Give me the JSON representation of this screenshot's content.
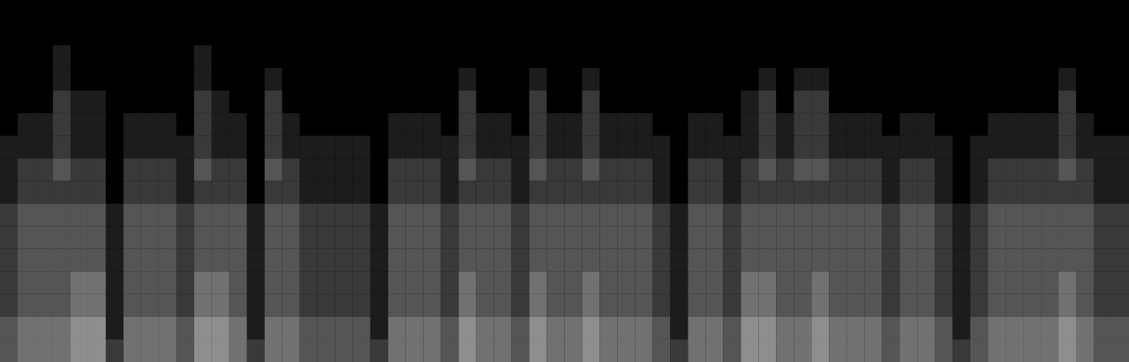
{
  "chart_data": {
    "type": "heatmap",
    "tick_labels": false,
    "zlim": [
      0,
      9
    ],
    "cells": [
      [
        0,
        0,
        0,
        0,
        0,
        0,
        0,
        0,
        0,
        0,
        0,
        0,
        0,
        0,
        0,
        0,
        0,
        0,
        0,
        0,
        0,
        0,
        0,
        0,
        0,
        0,
        0,
        0,
        0,
        0,
        0,
        0,
        0,
        0,
        0,
        0,
        0,
        0,
        0,
        0,
        0,
        0,
        0,
        0,
        0,
        0,
        0,
        0,
        0,
        0,
        0,
        0,
        0,
        0,
        0,
        0,
        0,
        0,
        0,
        0,
        0,
        0,
        0,
        0
      ],
      [
        0,
        0,
        0,
        0,
        0,
        0,
        0,
        0,
        0,
        0,
        0,
        0,
        0,
        0,
        0,
        0,
        0,
        0,
        0,
        0,
        0,
        0,
        0,
        0,
        0,
        0,
        0,
        0,
        0,
        0,
        0,
        0,
        0,
        0,
        0,
        0,
        0,
        0,
        0,
        0,
        0,
        0,
        0,
        0,
        0,
        0,
        0,
        0,
        0,
        0,
        0,
        0,
        0,
        0,
        0,
        0,
        0,
        0,
        0,
        0,
        0,
        0,
        0,
        0
      ],
      [
        0,
        0,
        0,
        1,
        0,
        0,
        0,
        0,
        0,
        0,
        0,
        1,
        0,
        0,
        0,
        0,
        0,
        0,
        0,
        0,
        0,
        0,
        0,
        0,
        0,
        0,
        0,
        0,
        0,
        0,
        0,
        0,
        0,
        0,
        0,
        0,
        0,
        0,
        0,
        0,
        0,
        0,
        0,
        0,
        0,
        0,
        0,
        0,
        0,
        0,
        0,
        0,
        0,
        0,
        0,
        0,
        0,
        0,
        0,
        0,
        0,
        0,
        0,
        0
      ],
      [
        0,
        0,
        0,
        1,
        0,
        0,
        0,
        0,
        0,
        0,
        0,
        1,
        0,
        0,
        0,
        1,
        0,
        0,
        0,
        0,
        0,
        0,
        0,
        0,
        0,
        0,
        1,
        0,
        0,
        0,
        1,
        0,
        0,
        1,
        0,
        0,
        0,
        0,
        0,
        0,
        0,
        0,
        0,
        1,
        0,
        1,
        1,
        0,
        0,
        0,
        0,
        0,
        0,
        0,
        0,
        0,
        0,
        0,
        0,
        0,
        1,
        0,
        0,
        0
      ],
      [
        0,
        0,
        0,
        2,
        1,
        1,
        0,
        0,
        0,
        0,
        0,
        2,
        1,
        0,
        0,
        2,
        0,
        0,
        0,
        0,
        0,
        0,
        0,
        0,
        0,
        0,
        2,
        0,
        0,
        0,
        2,
        0,
        0,
        2,
        0,
        0,
        0,
        0,
        0,
        0,
        0,
        0,
        1,
        2,
        0,
        2,
        2,
        0,
        0,
        0,
        0,
        0,
        0,
        0,
        0,
        0,
        0,
        0,
        0,
        0,
        2,
        0,
        0,
        0
      ],
      [
        0,
        1,
        1,
        2,
        1,
        1,
        0,
        1,
        1,
        1,
        0,
        2,
        1,
        1,
        0,
        2,
        1,
        0,
        0,
        0,
        0,
        0,
        1,
        1,
        1,
        0,
        2,
        1,
        1,
        0,
        2,
        1,
        1,
        2,
        1,
        1,
        1,
        0,
        0,
        1,
        1,
        0,
        1,
        2,
        1,
        2,
        2,
        1,
        1,
        1,
        0,
        1,
        1,
        0,
        0,
        0,
        1,
        1,
        1,
        1,
        2,
        1,
        0,
        0
      ],
      [
        1,
        1,
        1,
        2,
        1,
        1,
        0,
        1,
        1,
        1,
        1,
        2,
        1,
        1,
        0,
        2,
        1,
        1,
        1,
        1,
        1,
        0,
        1,
        1,
        1,
        1,
        2,
        1,
        1,
        1,
        2,
        1,
        1,
        2,
        1,
        1,
        1,
        1,
        0,
        1,
        1,
        1,
        1,
        2,
        1,
        2,
        2,
        1,
        1,
        1,
        1,
        1,
        1,
        1,
        0,
        1,
        1,
        1,
        1,
        1,
        2,
        1,
        1,
        1
      ],
      [
        1,
        2,
        2,
        3,
        2,
        2,
        0,
        2,
        2,
        2,
        1,
        3,
        2,
        2,
        0,
        3,
        2,
        1,
        1,
        1,
        1,
        0,
        2,
        2,
        2,
        1,
        3,
        2,
        2,
        1,
        3,
        2,
        2,
        3,
        2,
        2,
        2,
        1,
        0,
        2,
        2,
        1,
        2,
        3,
        2,
        3,
        3,
        2,
        2,
        2,
        1,
        2,
        2,
        1,
        0,
        1,
        2,
        2,
        2,
        2,
        3,
        2,
        1,
        1
      ],
      [
        1,
        2,
        2,
        2,
        2,
        2,
        0,
        2,
        2,
        2,
        1,
        2,
        2,
        2,
        0,
        2,
        2,
        1,
        1,
        1,
        1,
        0,
        2,
        2,
        2,
        1,
        2,
        2,
        2,
        1,
        2,
        2,
        2,
        2,
        2,
        2,
        2,
        1,
        0,
        2,
        2,
        1,
        2,
        2,
        2,
        2,
        2,
        2,
        2,
        2,
        1,
        2,
        2,
        1,
        0,
        1,
        2,
        2,
        2,
        2,
        2,
        2,
        1,
        1
      ],
      [
        2,
        3,
        3,
        3,
        3,
        3,
        1,
        3,
        3,
        3,
        2,
        3,
        3,
        3,
        1,
        3,
        3,
        2,
        2,
        2,
        2,
        1,
        3,
        3,
        3,
        2,
        3,
        3,
        3,
        2,
        3,
        3,
        3,
        3,
        3,
        3,
        3,
        2,
        1,
        3,
        3,
        2,
        3,
        3,
        3,
        3,
        3,
        3,
        3,
        3,
        2,
        3,
        3,
        2,
        1,
        2,
        3,
        3,
        3,
        3,
        3,
        3,
        2,
        2
      ],
      [
        2,
        3,
        3,
        3,
        3,
        3,
        1,
        3,
        3,
        3,
        2,
        3,
        3,
        3,
        1,
        3,
        3,
        2,
        2,
        2,
        2,
        1,
        3,
        3,
        3,
        2,
        3,
        3,
        3,
        2,
        3,
        3,
        3,
        3,
        3,
        3,
        3,
        2,
        1,
        3,
        3,
        2,
        3,
        3,
        3,
        3,
        3,
        3,
        3,
        3,
        2,
        3,
        3,
        2,
        1,
        2,
        3,
        3,
        3,
        3,
        3,
        3,
        2,
        2
      ],
      [
        2,
        3,
        3,
        3,
        3,
        3,
        1,
        3,
        3,
        3,
        2,
        3,
        3,
        3,
        1,
        3,
        3,
        2,
        2,
        2,
        2,
        1,
        3,
        3,
        3,
        2,
        3,
        3,
        3,
        2,
        3,
        3,
        3,
        3,
        3,
        3,
        3,
        2,
        1,
        3,
        3,
        2,
        3,
        3,
        3,
        3,
        3,
        3,
        3,
        3,
        2,
        3,
        3,
        2,
        1,
        2,
        3,
        3,
        3,
        3,
        3,
        3,
        2,
        2
      ],
      [
        2,
        3,
        3,
        3,
        4,
        4,
        1,
        3,
        3,
        3,
        2,
        4,
        4,
        3,
        1,
        3,
        3,
        2,
        2,
        2,
        2,
        1,
        3,
        3,
        3,
        2,
        4,
        3,
        3,
        2,
        4,
        3,
        3,
        4,
        3,
        3,
        3,
        2,
        1,
        3,
        3,
        2,
        4,
        4,
        3,
        3,
        4,
        3,
        3,
        3,
        2,
        3,
        3,
        2,
        1,
        2,
        3,
        3,
        3,
        3,
        4,
        3,
        2,
        2
      ],
      [
        2,
        3,
        3,
        3,
        4,
        4,
        1,
        3,
        3,
        3,
        2,
        4,
        4,
        3,
        1,
        3,
        3,
        2,
        2,
        2,
        2,
        1,
        3,
        3,
        3,
        2,
        4,
        3,
        3,
        2,
        4,
        3,
        3,
        4,
        3,
        3,
        3,
        2,
        1,
        3,
        3,
        2,
        4,
        4,
        3,
        3,
        4,
        3,
        3,
        3,
        2,
        3,
        3,
        2,
        1,
        2,
        3,
        3,
        3,
        3,
        4,
        3,
        2,
        2
      ],
      [
        3,
        4,
        4,
        4,
        5,
        5,
        1,
        4,
        4,
        4,
        3,
        5,
        5,
        4,
        1,
        4,
        4,
        3,
        3,
        3,
        3,
        1,
        4,
        4,
        4,
        3,
        5,
        4,
        4,
        3,
        5,
        4,
        4,
        5,
        4,
        4,
        4,
        3,
        1,
        4,
        4,
        3,
        5,
        5,
        4,
        4,
        5,
        4,
        4,
        4,
        3,
        4,
        4,
        3,
        1,
        3,
        4,
        4,
        4,
        4,
        5,
        4,
        3,
        3
      ],
      [
        3,
        4,
        4,
        4,
        5,
        5,
        2,
        4,
        4,
        4,
        3,
        5,
        5,
        4,
        2,
        4,
        4,
        3,
        3,
        3,
        3,
        2,
        4,
        4,
        4,
        3,
        5,
        4,
        4,
        3,
        5,
        4,
        4,
        5,
        4,
        4,
        4,
        3,
        2,
        4,
        4,
        3,
        5,
        5,
        4,
        4,
        5,
        4,
        4,
        4,
        3,
        4,
        4,
        3,
        2,
        3,
        4,
        4,
        4,
        4,
        5,
        4,
        3,
        3
      ]
    ]
  }
}
